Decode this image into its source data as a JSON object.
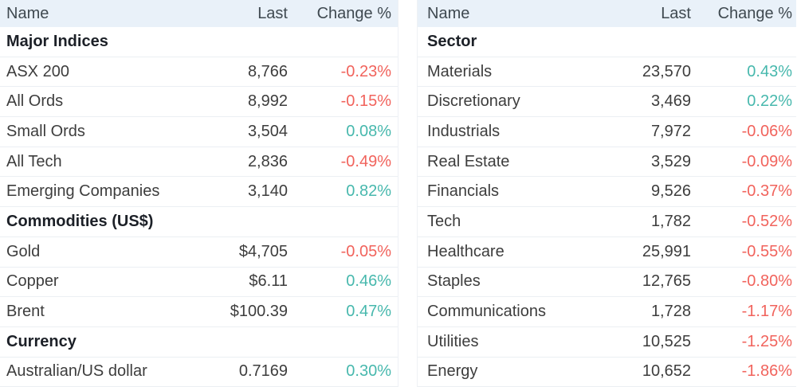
{
  "colors": {
    "positive": "#47b8ad",
    "negative": "#f1635c",
    "header_bg": "#e9f1f9"
  },
  "chart_data": [
    {
      "type": "table",
      "position": "left",
      "headers": {
        "name": "Name",
        "last": "Last",
        "change": "Change %"
      },
      "rows": [
        {
          "type": "section",
          "name": "Major Indices"
        },
        {
          "type": "data",
          "name": "ASX 200",
          "last": "8,766",
          "change": "-0.23%",
          "direction": "down"
        },
        {
          "type": "data",
          "name": "All Ords",
          "last": "8,992",
          "change": "-0.15%",
          "direction": "down"
        },
        {
          "type": "data",
          "name": "Small Ords",
          "last": "3,504",
          "change": "0.08%",
          "direction": "up"
        },
        {
          "type": "data",
          "name": "All Tech",
          "last": "2,836",
          "change": "-0.49%",
          "direction": "down"
        },
        {
          "type": "data",
          "name": "Emerging Companies",
          "last": "3,140",
          "change": "0.82%",
          "direction": "up"
        },
        {
          "type": "section",
          "name": "Commodities (US$)"
        },
        {
          "type": "data",
          "name": "Gold",
          "last": "$4,705",
          "change": "-0.05%",
          "direction": "down"
        },
        {
          "type": "data",
          "name": "Copper",
          "last": "$6.11",
          "change": "0.46%",
          "direction": "up"
        },
        {
          "type": "data",
          "name": "Brent",
          "last": "$100.39",
          "change": "0.47%",
          "direction": "up"
        },
        {
          "type": "section",
          "name": "Currency"
        },
        {
          "type": "data",
          "name": "Australian/US dollar",
          "last": "0.7169",
          "change": "0.30%",
          "direction": "up"
        }
      ]
    },
    {
      "type": "table",
      "position": "right",
      "headers": {
        "name": "Name",
        "last": "Last",
        "change": "Change %"
      },
      "rows": [
        {
          "type": "section",
          "name": "Sector"
        },
        {
          "type": "data",
          "name": "Materials",
          "last": "23,570",
          "change": "0.43%",
          "direction": "up"
        },
        {
          "type": "data",
          "name": "Discretionary",
          "last": "3,469",
          "change": "0.22%",
          "direction": "up"
        },
        {
          "type": "data",
          "name": "Industrials",
          "last": "7,972",
          "change": "-0.06%",
          "direction": "down"
        },
        {
          "type": "data",
          "name": "Real Estate",
          "last": "3,529",
          "change": "-0.09%",
          "direction": "down"
        },
        {
          "type": "data",
          "name": "Financials",
          "last": "9,526",
          "change": "-0.37%",
          "direction": "down"
        },
        {
          "type": "data",
          "name": "Tech",
          "last": "1,782",
          "change": "-0.52%",
          "direction": "down"
        },
        {
          "type": "data",
          "name": "Healthcare",
          "last": "25,991",
          "change": "-0.55%",
          "direction": "down"
        },
        {
          "type": "data",
          "name": "Staples",
          "last": "12,765",
          "change": "-0.80%",
          "direction": "down"
        },
        {
          "type": "data",
          "name": "Communications",
          "last": "1,728",
          "change": "-1.17%",
          "direction": "down"
        },
        {
          "type": "data",
          "name": "Utilities",
          "last": "10,525",
          "change": "-1.25%",
          "direction": "down"
        },
        {
          "type": "data",
          "name": "Energy",
          "last": "10,652",
          "change": "-1.86%",
          "direction": "down"
        }
      ]
    }
  ]
}
